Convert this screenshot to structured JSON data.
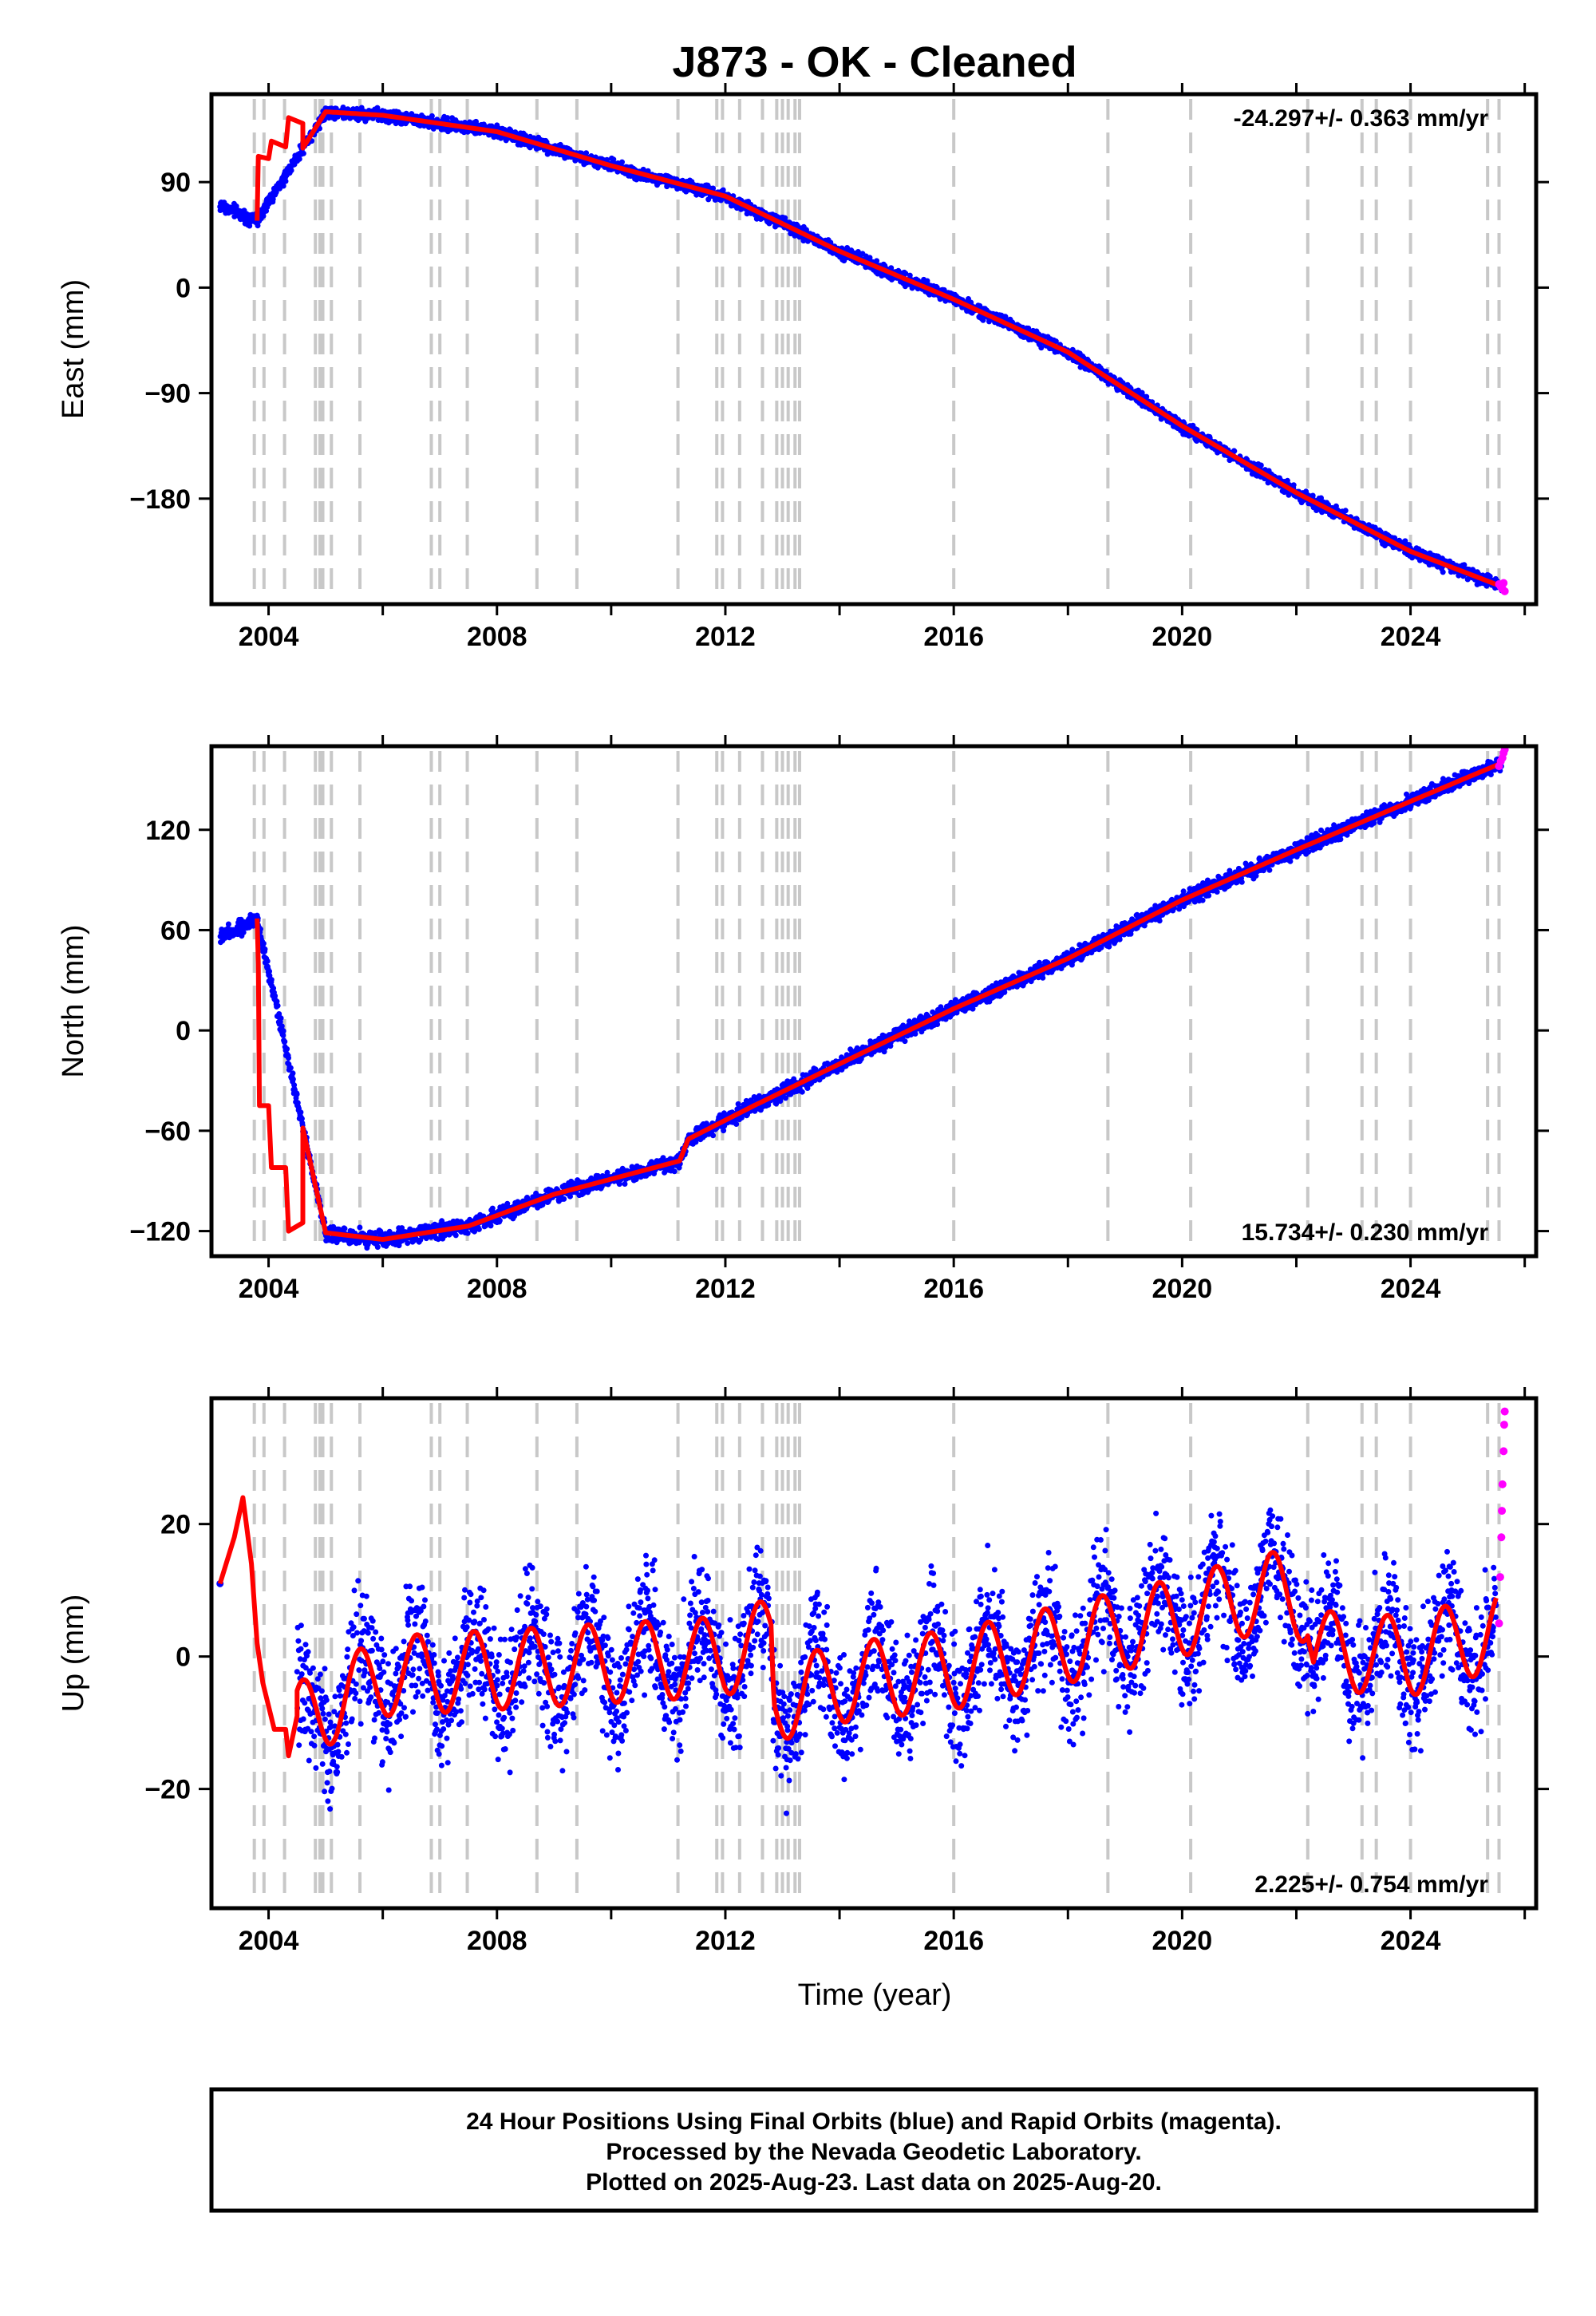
{
  "figure": {
    "title": "J873  - OK - Cleaned",
    "xlabel": "Time (year)",
    "footer": [
      "24 Hour Positions Using Final Orbits (blue) and Rapid Orbits (magenta).",
      "Processed by the Nevada Geodetic Laboratory.",
      "Plotted on 2025-Aug-23. Last data on 2025-Aug-20."
    ],
    "colors": {
      "final": "#0000ff",
      "rapid": "#ff00ff",
      "model": "#ff0000",
      "steps": "#c8c8c8"
    }
  },
  "chart_data": [
    {
      "type": "scatter",
      "ylabel": "East (mm)",
      "rate_label": "-24.297+/- 0.363 mm/yr",
      "rate_position": "top-right",
      "xlim": [
        2003.0,
        2026.2
      ],
      "ylim": [
        -270,
        165
      ],
      "xticks": [
        2004,
        2008,
        2012,
        2016,
        2020,
        2024
      ],
      "yticks": [
        -180,
        -90,
        0,
        90
      ],
      "start_x": 2003.15,
      "anchors": [
        [
          2003.15,
          70
        ],
        [
          2003.8,
          57
        ],
        [
          2005.0,
          150
        ],
        [
          2006.0,
          147
        ],
        [
          2008.0,
          133
        ],
        [
          2010.0,
          104
        ],
        [
          2012.0,
          78
        ],
        [
          2014.0,
          31
        ],
        [
          2016.0,
          -10
        ],
        [
          2018.0,
          -55
        ],
        [
          2020.0,
          -118
        ],
        [
          2022.0,
          -175
        ],
        [
          2024.0,
          -225
        ],
        [
          2025.6,
          -255
        ]
      ],
      "gap_series": [
        [
          2003.8,
          57
        ],
        [
          2003.82,
          112
        ],
        [
          2004.0,
          110
        ],
        [
          2004.05,
          125
        ],
        [
          2004.3,
          120
        ],
        [
          2004.35,
          145
        ],
        [
          2004.6,
          140
        ]
      ],
      "seasonal_amp": 0,
      "noise": 2.5,
      "step_years": [
        2003.75,
        2003.92,
        2004.28,
        2004.82,
        2004.9,
        2004.95,
        2005.1,
        2005.6,
        2006.85,
        2007.0,
        2007.48,
        2008.7,
        2009.4,
        2011.17,
        2011.85,
        2011.95,
        2012.25,
        2012.65,
        2012.9,
        2013.0,
        2013.1,
        2013.22,
        2013.3,
        2016.0,
        2018.7,
        2020.15,
        2022.2,
        2023.15,
        2023.4,
        2024.0,
        2025.35,
        2025.55
      ],
      "rapid_points": [
        [
          2025.55,
          -253
        ],
        [
          2025.58,
          -255
        ],
        [
          2025.61,
          -257
        ],
        [
          2025.63,
          -252
        ],
        [
          2025.65,
          -259
        ]
      ]
    },
    {
      "type": "scatter",
      "ylabel": "North (mm)",
      "rate_label": "15.734+/- 0.230 mm/yr",
      "rate_position": "bottom-right",
      "xlim": [
        2003.0,
        2026.2
      ],
      "ylim": [
        -135,
        170
      ],
      "xticks": [
        2004,
        2008,
        2012,
        2016,
        2020,
        2024
      ],
      "yticks": [
        -120,
        -60,
        0,
        60,
        120
      ],
      "start_x": 2003.15,
      "anchors": [
        [
          2003.15,
          56
        ],
        [
          2003.8,
          67
        ],
        [
          2005.0,
          -121
        ],
        [
          2006.0,
          -125
        ],
        [
          2007.5,
          -117
        ],
        [
          2009.0,
          -98
        ],
        [
          2011.2,
          -78
        ],
        [
          2011.35,
          -65
        ],
        [
          2012.5,
          -45
        ],
        [
          2014.0,
          -20
        ],
        [
          2016.0,
          13
        ],
        [
          2018.0,
          43
        ],
        [
          2020.0,
          78
        ],
        [
          2022.0,
          108
        ],
        [
          2024.0,
          137
        ],
        [
          2025.6,
          160
        ]
      ],
      "gap_series": [
        [
          2003.8,
          67
        ],
        [
          2003.82,
          40
        ],
        [
          2003.84,
          -45
        ],
        [
          2004.0,
          -45
        ],
        [
          2004.05,
          -82
        ],
        [
          2004.3,
          -82
        ],
        [
          2004.35,
          -120
        ],
        [
          2004.6,
          -115
        ]
      ],
      "seasonal_amp": 0,
      "noise": 2.2,
      "step_years": [
        2003.75,
        2003.92,
        2004.28,
        2004.82,
        2004.9,
        2004.95,
        2005.1,
        2005.6,
        2006.85,
        2007.0,
        2007.48,
        2008.7,
        2009.4,
        2011.17,
        2011.85,
        2011.95,
        2012.25,
        2012.65,
        2012.9,
        2013.0,
        2013.1,
        2013.22,
        2013.3,
        2016.0,
        2018.7,
        2020.15,
        2022.2,
        2023.15,
        2023.4,
        2024.0,
        2025.35,
        2025.55
      ],
      "rapid_points": [
        [
          2025.55,
          158
        ],
        [
          2025.58,
          161
        ],
        [
          2025.61,
          163
        ],
        [
          2025.63,
          166
        ],
        [
          2025.65,
          168
        ]
      ]
    },
    {
      "type": "scatter",
      "ylabel": "Up (mm)",
      "rate_label": "2.225+/- 0.754 mm/yr",
      "rate_position": "bottom-right",
      "xlim": [
        2003.0,
        2026.2
      ],
      "ylim": [
        -38,
        39
      ],
      "xticks": [
        2004,
        2008,
        2012,
        2016,
        2020,
        2024
      ],
      "yticks": [
        -20,
        0,
        20
      ],
      "start_x": 2004.5,
      "anchors": [
        [
          2004.5,
          -10
        ],
        [
          2006.0,
          -3
        ],
        [
          2008.0,
          -2
        ],
        [
          2010.0,
          -1
        ],
        [
          2012.0,
          0
        ],
        [
          2012.8,
          3
        ],
        [
          2012.85,
          -7
        ],
        [
          2014.0,
          -4
        ],
        [
          2016.0,
          -2
        ],
        [
          2018.0,
          2
        ],
        [
          2020.0,
          6
        ],
        [
          2021.5,
          10
        ],
        [
          2022.2,
          8
        ],
        [
          2022.3,
          1
        ],
        [
          2024.0,
          0
        ],
        [
          2025.5,
          4
        ]
      ],
      "gap_series": [
        [
          2003.15,
          11
        ],
        [
          2003.4,
          18
        ],
        [
          2003.55,
          24
        ],
        [
          2003.7,
          14
        ],
        [
          2003.8,
          2
        ],
        [
          2003.9,
          -4
        ],
        [
          2004.1,
          -11
        ],
        [
          2004.3,
          -11
        ],
        [
          2004.35,
          -15
        ],
        [
          2004.5,
          -9
        ]
      ],
      "seasonal_amp": 6,
      "noise": 4.5,
      "step_years": [
        2003.75,
        2003.92,
        2004.28,
        2004.82,
        2004.9,
        2004.95,
        2005.1,
        2005.6,
        2006.85,
        2007.0,
        2007.48,
        2008.7,
        2009.4,
        2011.17,
        2011.85,
        2011.95,
        2012.25,
        2012.65,
        2012.9,
        2013.0,
        2013.1,
        2013.22,
        2013.3,
        2016.0,
        2018.7,
        2020.15,
        2022.2,
        2023.15,
        2023.4,
        2024.0,
        2025.35,
        2025.55
      ],
      "rapid_points": [
        [
          2025.55,
          5
        ],
        [
          2025.57,
          12
        ],
        [
          2025.59,
          18
        ],
        [
          2025.6,
          22
        ],
        [
          2025.61,
          26
        ],
        [
          2025.63,
          31
        ],
        [
          2025.64,
          35
        ],
        [
          2025.65,
          37
        ]
      ]
    }
  ]
}
